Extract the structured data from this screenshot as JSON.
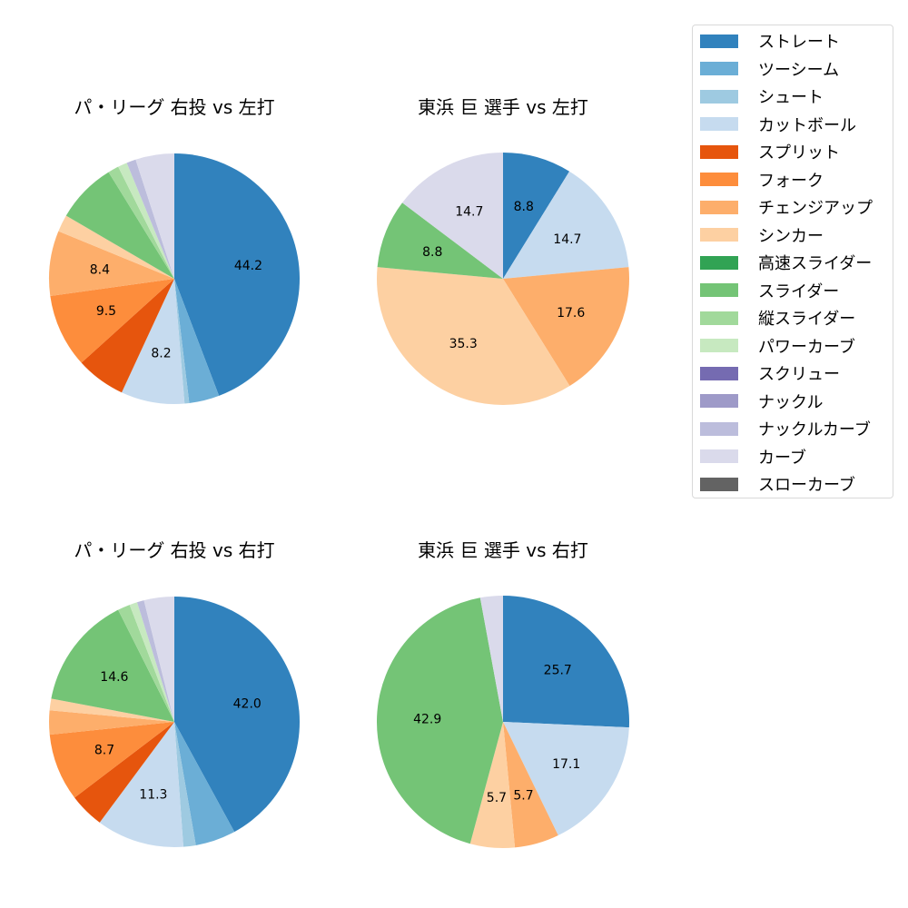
{
  "legend": {
    "items": [
      {
        "label": "ストレート",
        "color": "#3182bd"
      },
      {
        "label": "ツーシーム",
        "color": "#6baed6"
      },
      {
        "label": "シュート",
        "color": "#9ecae1"
      },
      {
        "label": "カットボール",
        "color": "#c6dbef"
      },
      {
        "label": "スプリット",
        "color": "#e6550d"
      },
      {
        "label": "フォーク",
        "color": "#fd8d3c"
      },
      {
        "label": "チェンジアップ",
        "color": "#fdae6b"
      },
      {
        "label": "シンカー",
        "color": "#fdd0a2"
      },
      {
        "label": "高速スライダー",
        "color": "#31a354"
      },
      {
        "label": "スライダー",
        "color": "#74c476"
      },
      {
        "label": "縦スライダー",
        "color": "#a1d99b"
      },
      {
        "label": "パワーカーブ",
        "color": "#c7e9c0"
      },
      {
        "label": "スクリュー",
        "color": "#756bb1"
      },
      {
        "label": "ナックル",
        "color": "#9e9ac8"
      },
      {
        "label": "ナックルカーブ",
        "color": "#bcbddc"
      },
      {
        "label": "カーブ",
        "color": "#dadaeb"
      },
      {
        "label": "スローカーブ",
        "color": "#636363"
      }
    ]
  },
  "chart_data": [
    {
      "type": "pie",
      "title": "パ・リーグ 右投 vs 左打",
      "start_angle": 90,
      "direction": "clockwise",
      "label_threshold": 8.0,
      "slices": [
        {
          "name": "ストレート",
          "value": 44.2,
          "label": "44.2"
        },
        {
          "name": "ツーシーム",
          "value": 3.9
        },
        {
          "name": "シュート",
          "value": 0.6
        },
        {
          "name": "カットボール",
          "value": 8.2,
          "label": "8.2"
        },
        {
          "name": "スプリット",
          "value": 6.4
        },
        {
          "name": "フォーク",
          "value": 9.5,
          "label": "9.5"
        },
        {
          "name": "チェンジアップ",
          "value": 8.4,
          "label": "8.4"
        },
        {
          "name": "シンカー",
          "value": 2.2
        },
        {
          "name": "スライダー",
          "value": 7.8
        },
        {
          "name": "縦スライダー",
          "value": 1.4
        },
        {
          "name": "パワーカーブ",
          "value": 1.2
        },
        {
          "name": "ナックルカーブ",
          "value": 1.2
        },
        {
          "name": "カーブ",
          "value": 5.0
        }
      ]
    },
    {
      "type": "pie",
      "title": "東浜 巨 選手 vs 左打",
      "start_angle": 90,
      "direction": "clockwise",
      "slices": [
        {
          "name": "ストレート",
          "value": 8.8,
          "label": "8.8"
        },
        {
          "name": "カットボール",
          "value": 14.7,
          "label": "14.7"
        },
        {
          "name": "チェンジアップ",
          "value": 17.6,
          "label": "17.6"
        },
        {
          "name": "シンカー",
          "value": 35.3,
          "label": "35.3"
        },
        {
          "name": "スライダー",
          "value": 8.8,
          "label": "8.8"
        },
        {
          "name": "カーブ",
          "value": 14.7,
          "label": "14.7"
        }
      ]
    },
    {
      "type": "pie",
      "title": "パ・リーグ 右投 vs 右打",
      "start_angle": 90,
      "direction": "clockwise",
      "slices": [
        {
          "name": "ストレート",
          "value": 42.0,
          "label": "42.0"
        },
        {
          "name": "ツーシーム",
          "value": 5.2
        },
        {
          "name": "シュート",
          "value": 1.6
        },
        {
          "name": "カットボール",
          "value": 11.3,
          "label": "11.3"
        },
        {
          "name": "スプリット",
          "value": 4.5
        },
        {
          "name": "フォーク",
          "value": 8.7,
          "label": "8.7"
        },
        {
          "name": "チェンジアップ",
          "value": 3.1
        },
        {
          "name": "シンカー",
          "value": 1.5
        },
        {
          "name": "スライダー",
          "value": 14.6,
          "label": "14.6"
        },
        {
          "name": "縦スライダー",
          "value": 1.6
        },
        {
          "name": "パワーカーブ",
          "value": 1.0
        },
        {
          "name": "ナックルカーブ",
          "value": 0.9
        },
        {
          "name": "カーブ",
          "value": 3.9
        }
      ]
    },
    {
      "type": "pie",
      "title": "東浜 巨 選手 vs 右打",
      "start_angle": 90,
      "direction": "clockwise",
      "slices": [
        {
          "name": "ストレート",
          "value": 25.7,
          "label": "25.7"
        },
        {
          "name": "カットボール",
          "value": 17.1,
          "label": "17.1"
        },
        {
          "name": "チェンジアップ",
          "value": 5.7,
          "label": "5.7"
        },
        {
          "name": "シンカー",
          "value": 5.7,
          "label": "5.7"
        },
        {
          "name": "スライダー",
          "value": 42.9,
          "label": "42.9"
        },
        {
          "name": "カーブ",
          "value": 2.9
        }
      ]
    }
  ]
}
